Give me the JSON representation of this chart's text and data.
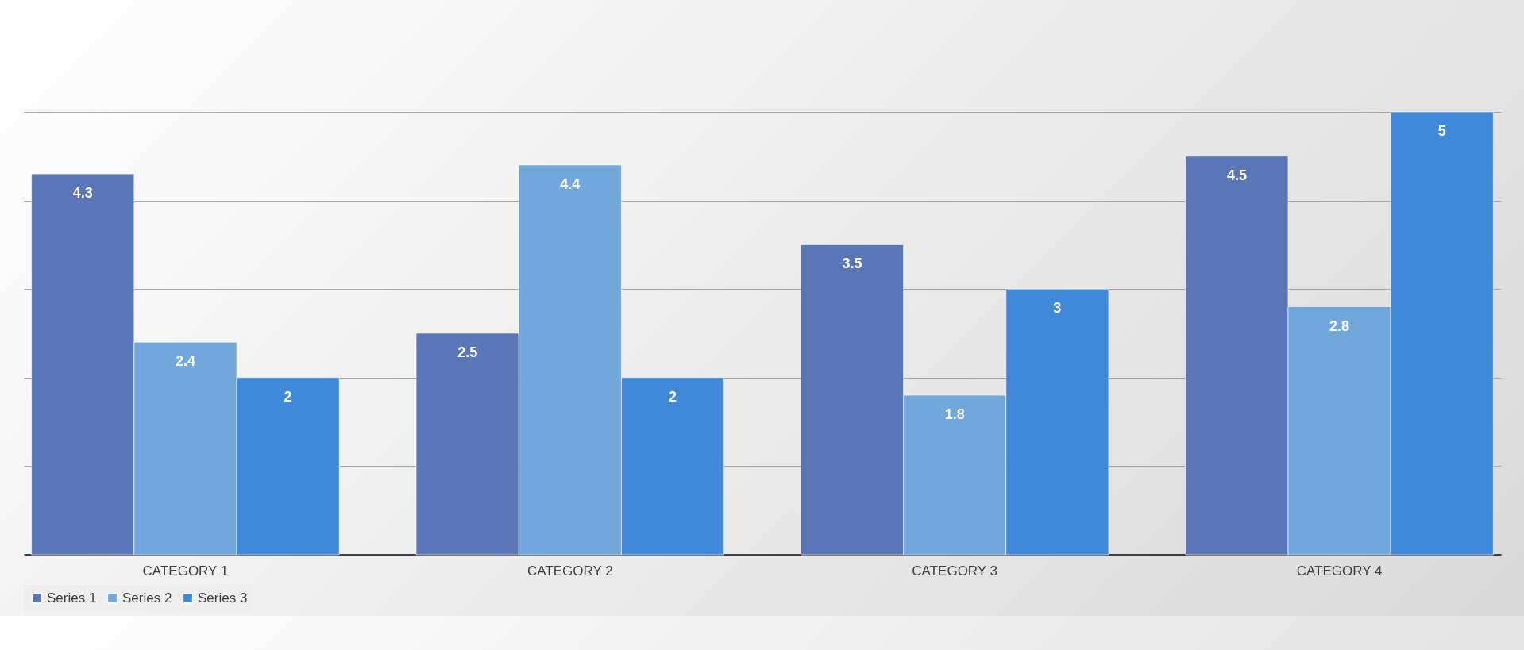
{
  "chart_data": {
    "type": "bar",
    "categories": [
      "CATEGORY 1",
      "CATEGORY 2",
      "CATEGORY 3",
      "CATEGORY 4"
    ],
    "series": [
      {
        "name": "Series 1",
        "color": "#5b76b7",
        "values": [
          4.3,
          2.5,
          3.5,
          4.5
        ]
      },
      {
        "name": "Series 2",
        "color": "#72a8d9",
        "values": [
          2.4,
          4.4,
          1.8,
          2.8
        ]
      },
      {
        "name": "Series 3",
        "color": "#3f89d8",
        "values": [
          2,
          2,
          3,
          5
        ]
      }
    ],
    "yticks": [
      {
        "value": 0,
        "label": null
      },
      {
        "value": 1,
        "label": null
      },
      {
        "value": 2,
        "label": null
      },
      {
        "value": 3,
        "label": null
      },
      {
        "value": 4,
        "label": null
      },
      {
        "value": 5,
        "label": null
      }
    ],
    "tick_labels": "x",
    "grid": "y",
    "legend": "bottom",
    "data_labels": true
  }
}
